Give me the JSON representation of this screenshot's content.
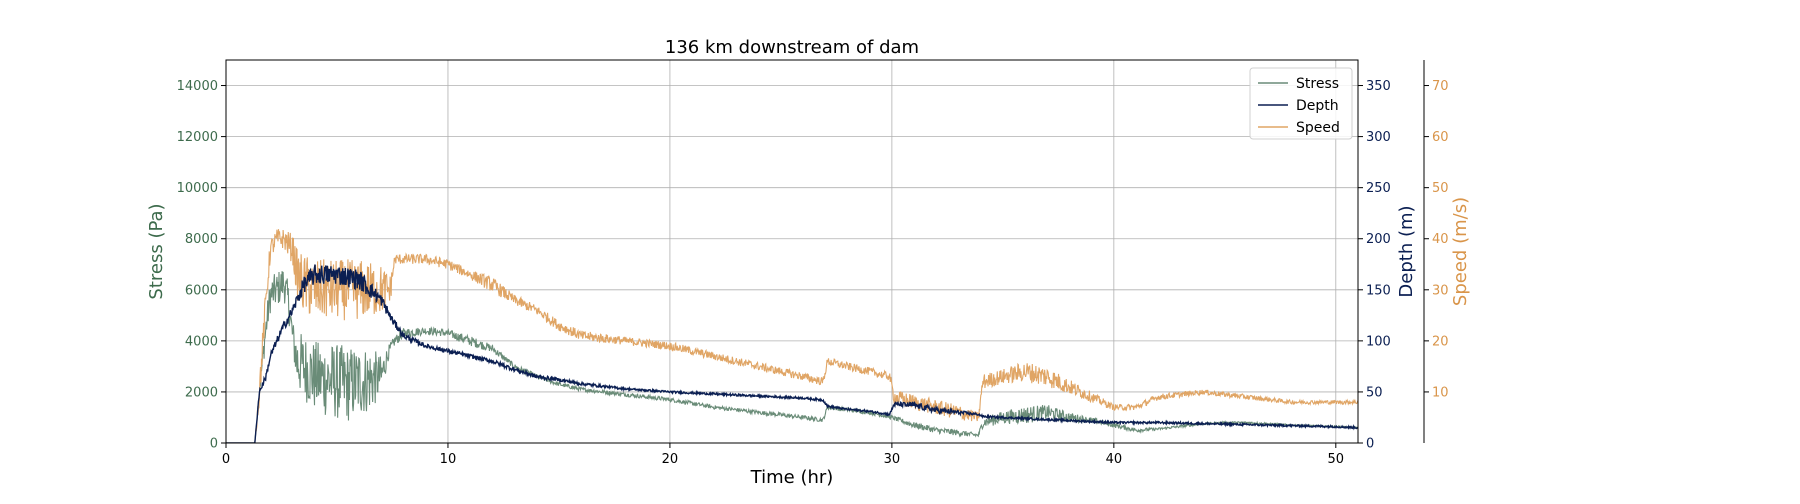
{
  "chart_data": {
    "type": "line",
    "title": "136 km downstream of dam",
    "xlabel": "Time (hr)",
    "xlim": [
      0,
      51
    ],
    "xticks": [
      0,
      10,
      20,
      30,
      40,
      50
    ],
    "grid": true,
    "legend_position": "top-right",
    "axes": {
      "stress": {
        "label": "Stress (Pa)",
        "lim": [
          0,
          15000
        ],
        "ticks": [
          0,
          2000,
          4000,
          6000,
          8000,
          10000,
          12000,
          14000
        ],
        "color": "#3d6b4c"
      },
      "depth": {
        "label": "Depth (m)",
        "lim": [
          0,
          375
        ],
        "ticks": [
          0,
          50,
          100,
          150,
          200,
          250,
          300,
          350
        ],
        "color": "#0b1f52"
      },
      "speed": {
        "label": "Speed (m/s)",
        "lim": [
          0,
          75
        ],
        "ticks": [
          10,
          20,
          30,
          40,
          50,
          60,
          70
        ],
        "color": "#d9954a"
      }
    },
    "series": [
      {
        "name": "Stress",
        "axis": "stress",
        "color": "#6a8c78",
        "x": [
          0,
          1.3,
          1.5,
          1.8,
          2.0,
          2.3,
          2.6,
          2.8,
          3.0,
          3.2,
          3.5,
          4.0,
          4.5,
          5.0,
          5.5,
          6.0,
          6.5,
          7.0,
          7.3,
          7.6,
          8.0,
          9.0,
          10.0,
          11.0,
          12.0,
          13.0,
          14.0,
          15.0,
          16.0,
          18.0,
          20.0,
          22.0,
          24.0,
          26.0,
          26.9,
          27.1,
          28.0,
          29.0,
          30.0,
          31.0,
          32.0,
          33.0,
          33.9,
          34.1,
          35.0,
          36.0,
          37.0,
          38.0,
          39.0,
          40.0,
          41.0,
          42.0,
          43.0,
          44.0,
          45.0,
          46.0,
          48.0,
          50.0,
          51.0
        ],
        "values": [
          0,
          0,
          2000,
          4500,
          5800,
          6000,
          6300,
          5600,
          4200,
          3200,
          3000,
          2600,
          2500,
          2400,
          2300,
          2400,
          2500,
          2600,
          3500,
          4000,
          4300,
          4400,
          4300,
          4000,
          3700,
          3000,
          2600,
          2300,
          2100,
          1900,
          1700,
          1400,
          1200,
          1000,
          900,
          1400,
          1300,
          1200,
          1000,
          700,
          500,
          400,
          300,
          800,
          1000,
          1100,
          1200,
          1000,
          900,
          700,
          500,
          550,
          650,
          750,
          800,
          800,
          700,
          650,
          600
        ],
        "noise": [
          0,
          0,
          300,
          600,
          700,
          700,
          700,
          700,
          600,
          1200,
          1300,
          1400,
          1500,
          1500,
          1500,
          1400,
          1300,
          800,
          300,
          200,
          200,
          150,
          150,
          200,
          150,
          100,
          100,
          80,
          80,
          80,
          80,
          80,
          80,
          80,
          80,
          80,
          80,
          80,
          80,
          120,
          120,
          120,
          80,
          200,
          250,
          350,
          300,
          200,
          100,
          100,
          80,
          50,
          50,
          40,
          40,
          40,
          30,
          30,
          30
        ]
      },
      {
        "name": "Depth",
        "axis": "depth",
        "color": "#0b1f52",
        "x": [
          0,
          1.3,
          1.5,
          1.8,
          2.0,
          2.5,
          3.0,
          3.5,
          4.0,
          5.0,
          6.0,
          7.0,
          7.5,
          8.0,
          9.0,
          10.0,
          11.0,
          12.0,
          13.0,
          14.0,
          15.0,
          16.0,
          18.0,
          20.0,
          22.0,
          24.0,
          26.0,
          26.9,
          27.1,
          28.0,
          29.0,
          29.9,
          30.1,
          31.0,
          32.0,
          33.0,
          33.9,
          34.1,
          35.0,
          36.0,
          37.0,
          38.0,
          39.0,
          40.0,
          42.0,
          44.0,
          46.0,
          48.0,
          50.0,
          51.0
        ],
        "values": [
          0,
          0,
          50,
          65,
          85,
          110,
          130,
          155,
          165,
          165,
          160,
          140,
          120,
          105,
          95,
          90,
          85,
          80,
          72,
          65,
          62,
          58,
          53,
          50,
          48,
          46,
          44,
          42,
          36,
          33,
          31,
          28,
          38,
          37,
          32,
          30,
          28,
          26,
          25,
          24,
          23,
          22,
          21,
          20,
          20,
          19,
          18,
          17,
          16,
          15
        ],
        "noise": [
          0,
          0,
          3,
          3,
          4,
          4,
          5,
          8,
          10,
          10,
          10,
          6,
          4,
          3,
          2,
          2,
          2,
          2,
          2,
          2,
          1.5,
          1.5,
          1,
          1,
          1,
          1,
          1,
          1,
          1,
          1,
          1,
          1,
          2,
          3,
          3,
          2,
          1,
          1,
          1,
          1,
          1,
          1,
          1,
          1,
          1,
          1,
          1,
          1,
          1,
          1
        ]
      },
      {
        "name": "Speed",
        "axis": "speed",
        "color": "#e0a565",
        "x": [
          0,
          1.3,
          1.5,
          1.8,
          2.0,
          2.3,
          2.6,
          3.0,
          3.2,
          3.5,
          4.0,
          5.0,
          6.0,
          7.0,
          7.4,
          7.6,
          8.0,
          9.0,
          10.0,
          11.0,
          12.0,
          13.0,
          14.0,
          15.0,
          16.0,
          18.0,
          20.0,
          22.0,
          24.0,
          26.0,
          26.9,
          27.1,
          28.0,
          29.0,
          29.9,
          30.1,
          31.0,
          32.0,
          33.0,
          33.9,
          34.1,
          35.0,
          36.0,
          37.0,
          38.0,
          39.0,
          40.0,
          41.0,
          42.0,
          44.0,
          46.0,
          48.0,
          50.0,
          51.0
        ],
        "values": [
          0,
          0,
          10,
          28,
          38,
          40,
          40,
          38,
          33,
          31,
          30,
          30,
          30,
          30,
          30,
          36,
          36,
          36,
          35,
          33,
          31,
          28,
          26,
          23,
          21,
          20,
          19,
          17,
          15,
          13,
          12,
          16,
          15,
          14,
          13,
          9,
          8,
          7,
          6,
          5,
          12,
          13,
          14,
          13,
          11,
          9,
          7,
          7,
          9,
          10,
          9,
          8,
          8,
          8
        ],
        "noise": [
          0,
          0,
          3,
          3,
          2,
          2,
          2,
          3,
          5,
          6,
          6,
          6,
          6,
          5,
          3,
          1,
          1,
          1,
          1,
          1,
          1.5,
          1,
          1,
          1,
          1,
          0.8,
          0.8,
          0.8,
          0.8,
          0.8,
          0.8,
          0.8,
          0.8,
          0.8,
          0.8,
          1.5,
          1.5,
          1.5,
          1.5,
          1,
          1.5,
          1.5,
          2,
          2,
          1.5,
          1,
          0.6,
          0.6,
          0.6,
          0.5,
          0.5,
          0.4,
          0.4,
          0.4
        ]
      }
    ]
  }
}
